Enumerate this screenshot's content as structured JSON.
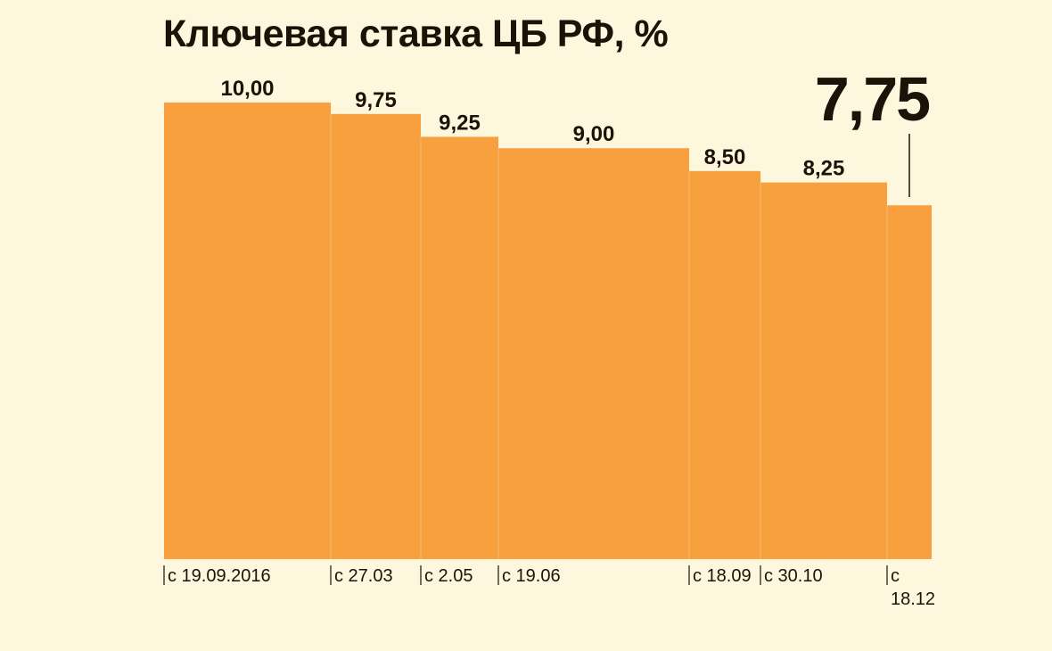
{
  "title": "Ключевая ставка ЦБ РФ, %",
  "chart_data": {
    "type": "bar",
    "title": "Ключевая ставка ЦБ РФ, %",
    "categories": [
      "с 19.09.2016",
      "с 27.03",
      "с 2.05",
      "с 19.06",
      "с 18.09",
      "с 30.10",
      "с 18.12"
    ],
    "tick_labels": [
      [
        "с 19.09.2016"
      ],
      [
        "с 27.03"
      ],
      [
        "с 2.05"
      ],
      [
        "с 19.06"
      ],
      [
        "с 18.09"
      ],
      [
        "с 30.10"
      ],
      [
        "с",
        "18.12"
      ]
    ],
    "values": [
      10.0,
      9.75,
      9.25,
      9.0,
      8.5,
      8.25,
      7.75
    ],
    "value_labels": [
      "10,00",
      "9,75",
      "9,25",
      "9,00",
      "8,50",
      "8,25",
      "7,75"
    ],
    "ylim": [
      0,
      10
    ],
    "xlabel": "",
    "ylabel": "",
    "grid": false,
    "legend": false,
    "bar_color": "#f9a03e",
    "divider_color": "#f5b870",
    "text_color": "#1c1208",
    "background": "#fdf8dd"
  }
}
